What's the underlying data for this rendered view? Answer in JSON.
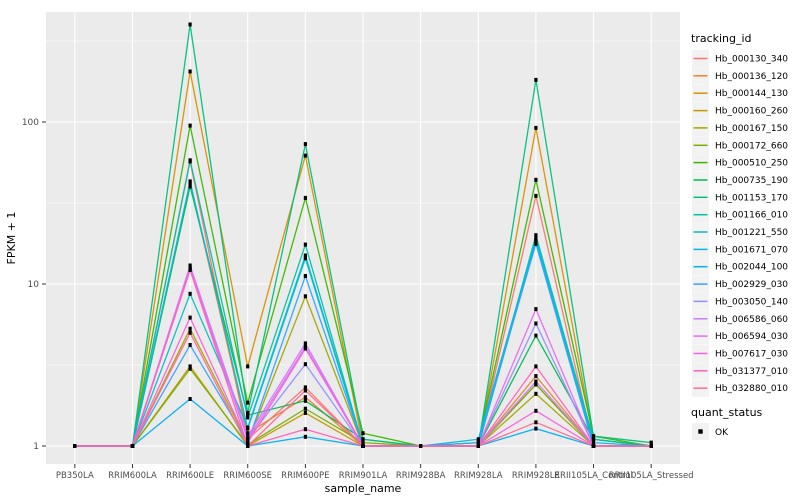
{
  "chart_data": {
    "type": "line",
    "title": "",
    "xlabel": "sample_name",
    "ylabel": "FPKM + 1",
    "y_scale": "log10",
    "y_ticks": [
      1,
      10,
      100
    ],
    "y_tick_labels": [
      "1",
      "10",
      "100"
    ],
    "y_minor_ticks": [
      3.162,
      31.62,
      316.2
    ],
    "ylim": [
      0.95,
      480
    ],
    "grid": true,
    "legend_position": "right",
    "point_marker": {
      "shape": "square",
      "color": "#000000",
      "meaning": "quant_status OK"
    },
    "categories": [
      "PB350LA",
      "RRIM600LA",
      "RRIM600LE",
      "RRIM600SE",
      "RRIM600PE",
      "RRIM901LA",
      "RRIM928BA",
      "RRIM928LA",
      "RRIM928LE",
      "RRII105LA_Control",
      "RRII105LA_Stressed"
    ],
    "series": [
      {
        "name": "Hb_000130_340",
        "color": "#F8766D",
        "values": [
          1,
          1,
          57,
          1.1,
          2.3,
          1,
          1,
          1,
          35,
          1,
          1
        ]
      },
      {
        "name": "Hb_000136_120",
        "color": "#EA8331",
        "values": [
          1,
          1,
          42,
          1.2,
          2.0,
          1,
          1,
          1,
          2.7,
          1,
          1
        ]
      },
      {
        "name": "Hb_000144_130",
        "color": "#D89000",
        "values": [
          1,
          1,
          205,
          3.1,
          62,
          1,
          1,
          1,
          92,
          1.1,
          1
        ]
      },
      {
        "name": "Hb_000160_260",
        "color": "#C09B00",
        "values": [
          1,
          1,
          3.1,
          1,
          1.6,
          1,
          1,
          1,
          2.4,
          1,
          1
        ]
      },
      {
        "name": "Hb_000167_150",
        "color": "#A3A500",
        "values": [
          1,
          1,
          5.3,
          1.05,
          8.4,
          1,
          1,
          1,
          2.1,
          1,
          1
        ]
      },
      {
        "name": "Hb_000172_660",
        "color": "#7CAE00",
        "values": [
          1,
          1,
          3.0,
          1.02,
          1.7,
          1.05,
          1,
          1,
          2.4,
          1,
          1
        ]
      },
      {
        "name": "Hb_000510_250",
        "color": "#39B600",
        "values": [
          1,
          1,
          95,
          1.85,
          34,
          1.2,
          1,
          1.05,
          44,
          1.15,
          1
        ]
      },
      {
        "name": "Hb_000735_190",
        "color": "#00BB4E",
        "values": [
          1,
          1,
          40,
          1.55,
          1.9,
          1.1,
          1,
          1,
          4.8,
          1.1,
          1
        ]
      },
      {
        "name": "Hb_001153_170",
        "color": "#00BF7D",
        "values": [
          1,
          1,
          400,
          1.6,
          73,
          1.1,
          1,
          1,
          182,
          1.15,
          1.05
        ]
      },
      {
        "name": "Hb_001166_010",
        "color": "#00C1A3",
        "values": [
          1,
          1,
          58,
          1.5,
          17.5,
          1,
          1,
          1,
          20,
          1.1,
          1
        ]
      },
      {
        "name": "Hb_001221_550",
        "color": "#00BFC4",
        "values": [
          1,
          1,
          8.7,
          1.3,
          15,
          1,
          1,
          1,
          18.5,
          1,
          1
        ]
      },
      {
        "name": "Hb_001671_070",
        "color": "#00BAE0",
        "values": [
          1,
          1,
          43,
          1.28,
          14.4,
          1,
          1,
          1.1,
          19,
          1.05,
          1
        ]
      },
      {
        "name": "Hb_002044_100",
        "color": "#00B0F6",
        "values": [
          1,
          1,
          1.95,
          1,
          1.14,
          1,
          1,
          1,
          1.28,
          1,
          1
        ]
      },
      {
        "name": "Hb_002929_030",
        "color": "#35A2FF",
        "values": [
          1,
          1,
          4.2,
          1.05,
          11.2,
          1,
          1,
          1.05,
          17.7,
          1,
          1
        ]
      },
      {
        "name": "Hb_003050_140",
        "color": "#9590FF",
        "values": [
          1,
          1,
          12.4,
          1.1,
          3.2,
          1,
          1,
          1,
          5.7,
          1,
          1
        ]
      },
      {
        "name": "Hb_006586_060",
        "color": "#C77CFF",
        "values": [
          1,
          1,
          13,
          1.15,
          4.3,
          1,
          1,
          1,
          2.5,
          1,
          1
        ]
      },
      {
        "name": "Hb_006594_030",
        "color": "#E76BF3",
        "values": [
          1,
          1,
          12.6,
          1.1,
          4.1,
          1,
          1,
          1,
          7.0,
          1,
          1
        ]
      },
      {
        "name": "Hb_007617_030",
        "color": "#FA62DB",
        "values": [
          1,
          1,
          6.2,
          1.05,
          4.0,
          1,
          1,
          1,
          1.65,
          1,
          1
        ]
      },
      {
        "name": "Hb_031377_010",
        "color": "#FF62BC",
        "values": [
          1,
          1,
          12.2,
          1.0,
          1.27,
          1,
          1,
          1,
          3.1,
          1,
          1
        ]
      },
      {
        "name": "Hb_032880_010",
        "color": "#FF6A98",
        "values": [
          1,
          1,
          5.0,
          1.0,
          2.2,
          1,
          1,
          1,
          1.4,
          1,
          1
        ]
      }
    ]
  },
  "legend": {
    "tracking_title": "tracking_id",
    "quant_title": "quant_status",
    "quant_items": [
      {
        "label": "OK"
      }
    ]
  },
  "colors": {
    "panel_bg": "#EBEBEB",
    "grid": "#FFFFFF",
    "tick_text": "#4D4D4D",
    "tick_mark": "#333333",
    "point": "#000000",
    "legend_key_bg": "#F2F2F2"
  }
}
